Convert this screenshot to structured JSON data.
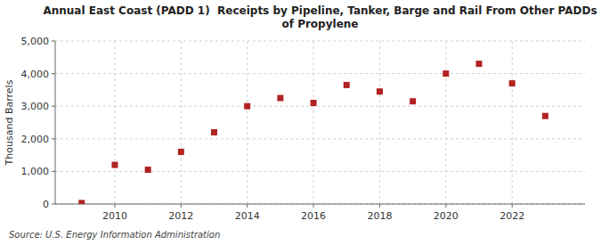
{
  "chart_data": {
    "type": "scatter",
    "title": "Annual East Coast (PADD 1)  Receipts by Pipeline, Tanker, Barge and Rail From Other PADDs\nof Propylene",
    "ylabel": "Thousand Barrels",
    "source": "Source: U.S. Energy Information Administration",
    "x": [
      2009,
      2010,
      2011,
      2012,
      2013,
      2014,
      2015,
      2016,
      2017,
      2018,
      2019,
      2020,
      2021,
      2022,
      2023
    ],
    "values": [
      30,
      1200,
      1050,
      1600,
      2200,
      3000,
      3250,
      3100,
      3650,
      3450,
      3150,
      4000,
      4300,
      3700,
      2700
    ],
    "color": "#b22222",
    "marker": "square",
    "xlim": [
      2008.2,
      2024.2
    ],
    "xticks": [
      2010,
      2012,
      2014,
      2016,
      2018,
      2020,
      2022
    ],
    "ylim": [
      0,
      5000
    ],
    "yticks": [
      0,
      {
        "value": 1000,
        "label": "1,000"
      },
      {
        "value": 2000,
        "label": "2,000"
      },
      {
        "value": 3000,
        "label": "3,000"
      },
      {
        "value": 4000,
        "label": "4,000"
      },
      {
        "value": 5000,
        "label": "5,000"
      }
    ],
    "grid": true
  }
}
